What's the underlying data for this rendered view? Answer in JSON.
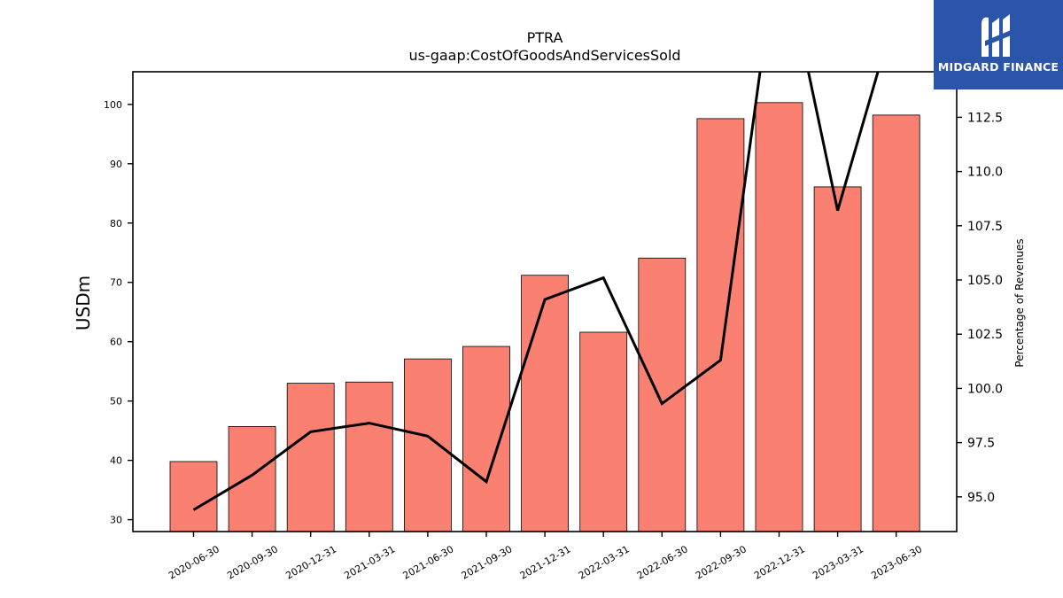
{
  "chart_data": {
    "type": "bar",
    "title": "PTRA",
    "subtitle": "us-gaap:CostOfGoodsAndServicesSold",
    "ylabel": "USDm",
    "y2label": "Percentage of Revenues",
    "categories": [
      "2020-06-30",
      "2020-09-30",
      "2020-12-31",
      "2021-03-31",
      "2021-06-30",
      "2021-09-30",
      "2021-12-31",
      "2022-03-31",
      "2022-06-30",
      "2022-09-30",
      "2022-12-31",
      "2023-03-31",
      "2023-06-30"
    ],
    "series": [
      {
        "axis": "left",
        "type": "bar",
        "color": "#fa8072",
        "values": [
          39.8,
          45.7,
          53.0,
          53.2,
          57.1,
          59.2,
          71.2,
          61.6,
          74.1,
          97.6,
          100.3,
          86.1,
          98.2
        ]
      },
      {
        "axis": "right",
        "type": "line",
        "color": "#000000",
        "values": [
          94.4,
          96.0,
          98.0,
          98.4,
          97.8,
          95.7,
          104.1,
          105.1,
          99.3,
          101.3,
          121.0,
          108.2,
          117.5
        ]
      }
    ],
    "ylim": [
      28,
      105.5
    ],
    "y2lim": [
      93.4,
      114.6
    ],
    "yticks": [
      30,
      40,
      50,
      60,
      70,
      80,
      90,
      100
    ],
    "y2ticks": [
      "95.0",
      "97.5",
      "100.0",
      "102.5",
      "105.0",
      "107.5",
      "110.0",
      "112.5"
    ]
  },
  "logo": {
    "text": "MIDGARD FINANCE",
    "color": "#2a55a8"
  }
}
